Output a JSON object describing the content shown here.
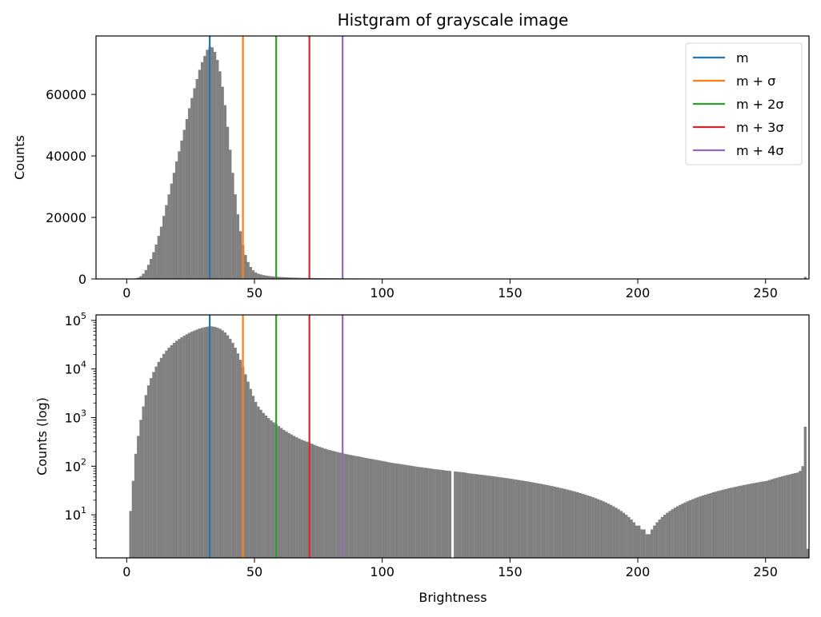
{
  "figure": {
    "title": "Histgram of grayscale image",
    "xlabel": "Brightness"
  },
  "chart_data": [
    {
      "type": "bar",
      "subtype": "histogram",
      "title": "Histgram of grayscale image",
      "xlabel": "",
      "ylabel": "Counts",
      "yscale": "linear",
      "xlim": [
        -12,
        267
      ],
      "ylim": [
        0,
        79000
      ],
      "xticks": [
        "0",
        "50",
        "100",
        "150",
        "200",
        "250"
      ],
      "yticks": [
        "0",
        "20000",
        "40000",
        "60000"
      ],
      "bar_color": "#808080",
      "legend": {
        "placement": "upper right",
        "entries": [
          "m",
          "m + σ",
          "m + 2σ",
          "m + 3σ",
          "m + 4σ"
        ]
      },
      "vlines": [
        {
          "label": "m",
          "x": 32.5,
          "color": "#1f77b4"
        },
        {
          "label": "m + σ",
          "x": 45.5,
          "color": "#ff7f0e"
        },
        {
          "label": "m + 2σ",
          "x": 58.5,
          "color": "#2ca02c"
        },
        {
          "label": "m + 3σ",
          "x": 71.5,
          "color": "#d62728"
        },
        {
          "label": "m + 4σ",
          "x": 84.5,
          "color": "#9467bd"
        }
      ],
      "bin_width": 1,
      "bins_start": 0,
      "counts": [
        0,
        12,
        50,
        180,
        420,
        900,
        1700,
        2900,
        4600,
        6500,
        8700,
        11200,
        14000,
        17000,
        20500,
        24000,
        27500,
        31000,
        34500,
        38200,
        41500,
        45000,
        48500,
        52000,
        55500,
        58800,
        62000,
        65000,
        68000,
        70500,
        72500,
        74500,
        75500,
        75300,
        73800,
        71200,
        67500,
        62500,
        56500,
        49500,
        42000,
        34500,
        27500,
        21000,
        15500,
        11000,
        7800,
        5500,
        3900,
        2800,
        2100,
        1700,
        1450,
        1250,
        1100,
        980,
        880,
        800,
        730,
        670,
        610,
        560,
        520,
        480,
        450,
        420,
        395,
        370,
        350,
        335,
        320,
        305,
        290,
        275,
        262,
        250,
        240,
        230,
        222,
        215,
        208,
        202,
        196,
        190,
        185,
        180,
        175,
        171,
        167,
        163,
        160,
        156,
        152,
        148,
        145,
        142,
        139,
        136,
        133,
        130,
        127,
        124,
        121,
        118,
        116,
        114,
        112,
        110,
        108,
        106,
        104,
        102,
        100,
        98,
        96,
        95,
        93,
        92,
        90,
        89,
        87,
        86,
        85,
        84,
        82,
        81,
        80,
        0,
        78,
        77,
        76,
        75,
        74,
        72,
        71,
        70,
        69,
        68,
        67,
        66,
        65,
        64,
        63,
        62,
        61,
        60,
        59,
        58,
        57,
        56,
        55,
        54,
        53,
        52,
        51,
        50,
        49,
        48,
        47,
        46,
        45,
        44,
        43,
        42,
        41,
        40,
        39,
        38,
        37,
        36,
        35,
        34,
        33,
        32,
        31,
        30,
        29,
        28,
        27,
        26,
        25,
        24,
        23,
        22,
        21,
        20,
        19,
        18,
        17,
        16,
        15,
        14,
        13,
        12,
        11,
        10,
        9,
        8,
        7,
        6,
        6,
        5,
        5,
        4,
        4,
        5,
        6,
        7,
        8,
        9,
        10,
        11,
        12,
        13,
        14,
        15,
        16,
        17,
        18,
        19,
        20,
        21,
        22,
        23,
        24,
        25,
        26,
        27,
        28,
        29,
        30,
        31,
        32,
        33,
        34,
        35,
        36,
        37,
        38,
        39,
        40,
        41,
        42,
        43,
        44,
        45,
        46,
        47,
        48,
        49,
        50,
        52,
        54,
        56,
        58,
        60,
        62,
        64,
        66,
        68,
        70,
        72,
        74,
        80,
        100,
        650,
        2
      ]
    },
    {
      "type": "bar",
      "subtype": "histogram",
      "title": "",
      "xlabel": "Brightness",
      "ylabel": "Counts (log)",
      "yscale": "log",
      "xlim": [
        -12,
        267
      ],
      "ylim": [
        1.3,
        130000
      ],
      "xticks": [
        "0",
        "50",
        "100",
        "150",
        "200",
        "250"
      ],
      "yticks": [
        "10^1",
        "10^2",
        "10^3",
        "10^4",
        "10^5"
      ],
      "bar_color": "#808080",
      "vlines": [
        {
          "label": "m",
          "x": 32.5,
          "color": "#1f77b4"
        },
        {
          "label": "m + σ",
          "x": 45.5,
          "color": "#ff7f0e"
        },
        {
          "label": "m + 2σ",
          "x": 58.5,
          "color": "#2ca02c"
        },
        {
          "label": "m + 3σ",
          "x": 71.5,
          "color": "#d62728"
        },
        {
          "label": "m + 4σ",
          "x": 84.5,
          "color": "#9467bd"
        }
      ],
      "bin_width": 1,
      "bins_start": 0,
      "counts_ref": "same as top panel"
    }
  ]
}
